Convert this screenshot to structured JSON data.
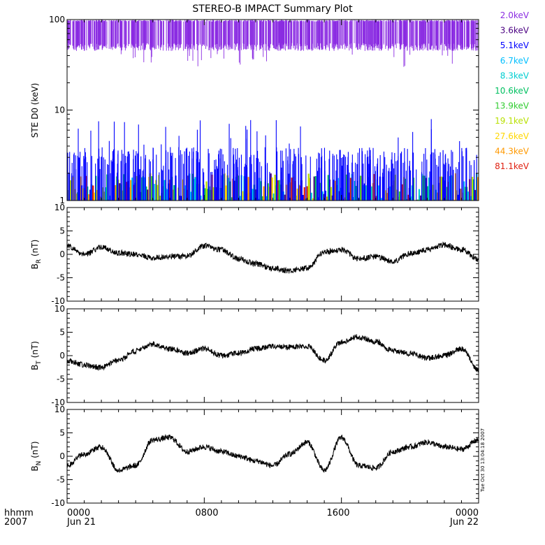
{
  "title": "STEREO-B IMPACT Summary Plot",
  "timestamp": "Tue Oct 30 13:04:18 2007",
  "x_axis": {
    "row1_labels": [
      "hhmm",
      "0000",
      "0800",
      "1600",
      "0000"
    ],
    "row2_labels": [
      "2007",
      "Jun 21",
      "",
      "",
      "Jun 22"
    ],
    "ticks_hours": [
      0,
      8,
      16,
      24
    ]
  },
  "chart_data": [
    {
      "type": "bar",
      "name": "STE D0 panel",
      "ylabel": "STE D0 (keV)",
      "yscale": "log",
      "ylim": [
        1,
        100
      ],
      "ytick_labels": [
        "100",
        "10",
        "1"
      ],
      "ytick_values": [
        100,
        10,
        1
      ],
      "xlim_hours": [
        0,
        24
      ],
      "legend_position": "right",
      "series": [
        {
          "name": "2.0keV",
          "color": "#8a2be2",
          "typical_range": [
            45,
            95
          ]
        },
        {
          "name": "3.6keV",
          "color": "#4b0082",
          "typical_range": [
            1,
            2
          ]
        },
        {
          "name": "5.1keV",
          "color": "#0000ff",
          "typical_range": [
            1,
            4
          ]
        },
        {
          "name": "6.7keV",
          "color": "#00bfff",
          "typical_range": [
            1,
            2
          ]
        },
        {
          "name": "8.3keV",
          "color": "#00ced1",
          "typical_range": [
            1,
            2
          ]
        },
        {
          "name": "10.6keV",
          "color": "#00c060",
          "typical_range": [
            1,
            2
          ]
        },
        {
          "name": "13.9keV",
          "color": "#32cd32",
          "typical_range": [
            1,
            2
          ]
        },
        {
          "name": "19.1keV",
          "color": "#b8e000",
          "typical_range": [
            1,
            2
          ]
        },
        {
          "name": "27.6keV",
          "color": "#ffd700",
          "typical_range": [
            1,
            2
          ]
        },
        {
          "name": "44.3keV",
          "color": "#ff9900",
          "typical_range": [
            1,
            2
          ]
        },
        {
          "name": "81.1keV",
          "color": "#e02010",
          "typical_range": [
            1,
            2
          ]
        }
      ]
    },
    {
      "type": "line",
      "name": "BR panel",
      "ylabel": "BR (nT)",
      "ylabel_main": "B",
      "ylabel_sub": "R",
      "ylabel_unit": " (nT)",
      "ylim": [
        -10,
        10
      ],
      "ytick_labels": [
        "10",
        "5",
        "0",
        "-5",
        "-10"
      ],
      "ytick_values": [
        10,
        5,
        0,
        -5,
        -10
      ],
      "x_hours": [
        0,
        1,
        2,
        3,
        4,
        5,
        6,
        7,
        8,
        9,
        10,
        11,
        12,
        13,
        14,
        15,
        16,
        17,
        18,
        19,
        20,
        21,
        22,
        23,
        24
      ],
      "values": [
        1.8,
        0.0,
        1.5,
        0.3,
        0.0,
        -0.7,
        -0.5,
        -0.3,
        1.8,
        1.0,
        -1.0,
        -2.0,
        -3.0,
        -3.5,
        -3.0,
        0.5,
        1.0,
        -1.0,
        -0.5,
        -1.5,
        0.2,
        1.0,
        2.0,
        1.0,
        -1.0
      ]
    },
    {
      "type": "line",
      "name": "BT panel",
      "ylabel": "BT (nT)",
      "ylabel_main": "B",
      "ylabel_sub": "T",
      "ylabel_unit": " (nT)",
      "ylim": [
        -10,
        10
      ],
      "ytick_labels": [
        "10",
        "5",
        "0",
        "-5",
        "-10"
      ],
      "ytick_values": [
        10,
        5,
        0,
        -5,
        -10
      ],
      "x_hours": [
        0,
        1,
        2,
        3,
        4,
        5,
        6,
        7,
        8,
        9,
        10,
        11,
        12,
        13,
        14,
        15,
        16,
        17,
        18,
        19,
        20,
        21,
        22,
        23,
        24
      ],
      "values": [
        -1.0,
        -2.0,
        -2.5,
        -1.0,
        1.0,
        2.5,
        1.5,
        0.5,
        1.5,
        0.0,
        0.5,
        1.5,
        2.0,
        1.8,
        2.0,
        -1.0,
        3.0,
        4.0,
        3.0,
        1.0,
        0.5,
        -0.5,
        0.0,
        1.5,
        -3.0
      ]
    },
    {
      "type": "line",
      "name": "BN panel",
      "ylabel": "BN (nT)",
      "ylabel_main": "B",
      "ylabel_sub": "N",
      "ylabel_unit": " (nT)",
      "ylim": [
        -10,
        10
      ],
      "ytick_labels": [
        "10",
        "5",
        "0",
        "-5",
        "-10"
      ],
      "ytick_values": [
        10,
        5,
        0,
        -5,
        -10
      ],
      "x_hours": [
        0,
        1,
        2,
        3,
        4,
        5,
        6,
        7,
        8,
        9,
        10,
        11,
        12,
        13,
        14,
        15,
        16,
        17,
        18,
        19,
        20,
        21,
        22,
        23,
        24
      ],
      "values": [
        -2.0,
        0.5,
        2.0,
        -3.0,
        -2.0,
        3.5,
        4.0,
        1.0,
        2.0,
        1.0,
        0.0,
        -1.0,
        -2.0,
        0.5,
        3.0,
        -3.0,
        4.0,
        -2.0,
        -2.5,
        1.0,
        2.0,
        3.0,
        2.0,
        1.5,
        3.5
      ]
    }
  ]
}
